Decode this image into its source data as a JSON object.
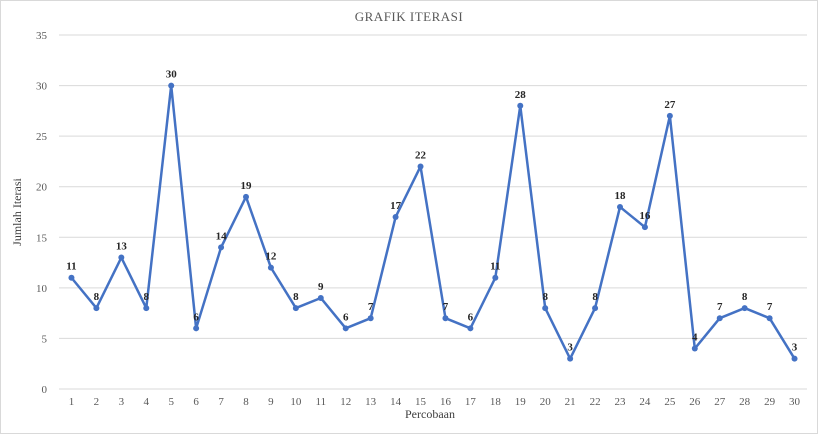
{
  "chart_data": {
    "type": "line",
    "title": "GRAFIK ITERASI",
    "xlabel": "Percobaan",
    "ylabel": "Jumlah Iterasi",
    "ylim": [
      0,
      35
    ],
    "yticks": [
      0,
      5,
      10,
      15,
      20,
      25,
      30,
      35
    ],
    "grid": true,
    "categories": [
      1,
      2,
      3,
      4,
      5,
      6,
      7,
      8,
      9,
      10,
      11,
      12,
      13,
      14,
      15,
      16,
      17,
      18,
      19,
      20,
      21,
      22,
      23,
      24,
      25,
      26,
      27,
      28,
      29,
      30
    ],
    "series": [
      {
        "color": "#4472c4",
        "values": [
          11,
          8,
          13,
          8,
          30,
          6,
          14,
          19,
          12,
          8,
          9,
          6,
          7,
          17,
          22,
          7,
          6,
          11,
          28,
          8,
          3,
          8,
          18,
          16,
          27,
          4,
          7,
          8,
          7,
          3
        ]
      }
    ]
  }
}
